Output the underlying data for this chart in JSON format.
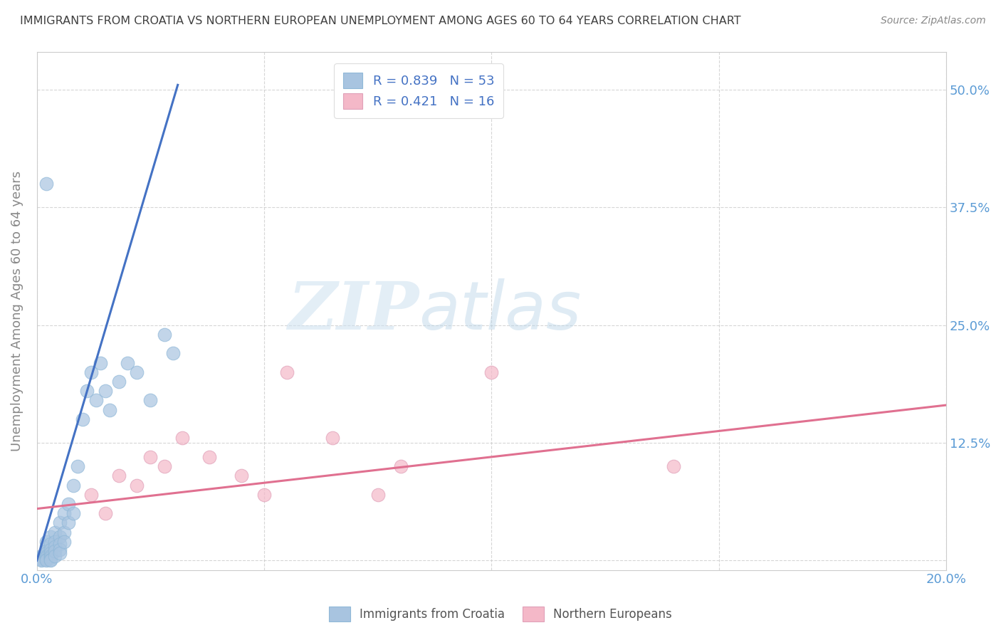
{
  "title": "IMMIGRANTS FROM CROATIA VS NORTHERN EUROPEAN UNEMPLOYMENT AMONG AGES 60 TO 64 YEARS CORRELATION CHART",
  "source": "Source: ZipAtlas.com",
  "ylabel": "Unemployment Among Ages 60 to 64 years",
  "xlim": [
    0.0,
    0.2
  ],
  "ylim": [
    -0.01,
    0.54
  ],
  "xticks": [
    0.0,
    0.05,
    0.1,
    0.15,
    0.2
  ],
  "xtick_labels": [
    "0.0%",
    "",
    "",
    "",
    "20.0%"
  ],
  "yticks": [
    0.0,
    0.125,
    0.25,
    0.375,
    0.5
  ],
  "ytick_labels_right": [
    "",
    "12.5%",
    "25.0%",
    "37.5%",
    "50.0%"
  ],
  "legend1_label": "R = 0.839   N = 53",
  "legend2_label": "R = 0.421   N = 16",
  "blue_scatter_color": "#a8c4e0",
  "pink_scatter_color": "#f4b8c8",
  "scatter_blue": [
    [
      0.001,
      0.005
    ],
    [
      0.001,
      0.003
    ],
    [
      0.001,
      0.002
    ],
    [
      0.001,
      0.001
    ],
    [
      0.001,
      0.0
    ],
    [
      0.002,
      0.02
    ],
    [
      0.002,
      0.015
    ],
    [
      0.002,
      0.01
    ],
    [
      0.002,
      0.008
    ],
    [
      0.002,
      0.005
    ],
    [
      0.002,
      0.003
    ],
    [
      0.002,
      0.001
    ],
    [
      0.002,
      0.0
    ],
    [
      0.003,
      0.025
    ],
    [
      0.003,
      0.018
    ],
    [
      0.003,
      0.012
    ],
    [
      0.003,
      0.008
    ],
    [
      0.003,
      0.005
    ],
    [
      0.003,
      0.003
    ],
    [
      0.003,
      0.001
    ],
    [
      0.003,
      0.0
    ],
    [
      0.004,
      0.03
    ],
    [
      0.004,
      0.02
    ],
    [
      0.004,
      0.015
    ],
    [
      0.004,
      0.01
    ],
    [
      0.004,
      0.005
    ],
    [
      0.005,
      0.04
    ],
    [
      0.005,
      0.025
    ],
    [
      0.005,
      0.018
    ],
    [
      0.005,
      0.012
    ],
    [
      0.005,
      0.008
    ],
    [
      0.006,
      0.05
    ],
    [
      0.006,
      0.03
    ],
    [
      0.006,
      0.02
    ],
    [
      0.007,
      0.06
    ],
    [
      0.007,
      0.04
    ],
    [
      0.008,
      0.08
    ],
    [
      0.008,
      0.05
    ],
    [
      0.009,
      0.1
    ],
    [
      0.01,
      0.15
    ],
    [
      0.011,
      0.18
    ],
    [
      0.012,
      0.2
    ],
    [
      0.013,
      0.17
    ],
    [
      0.014,
      0.21
    ],
    [
      0.015,
      0.18
    ],
    [
      0.02,
      0.21
    ],
    [
      0.025,
      0.17
    ],
    [
      0.03,
      0.22
    ],
    [
      0.002,
      0.4
    ],
    [
      0.016,
      0.16
    ],
    [
      0.018,
      0.19
    ],
    [
      0.022,
      0.2
    ],
    [
      0.028,
      0.24
    ]
  ],
  "scatter_pink": [
    [
      0.012,
      0.07
    ],
    [
      0.015,
      0.05
    ],
    [
      0.018,
      0.09
    ],
    [
      0.022,
      0.08
    ],
    [
      0.025,
      0.11
    ],
    [
      0.028,
      0.1
    ],
    [
      0.032,
      0.13
    ],
    [
      0.038,
      0.11
    ],
    [
      0.045,
      0.09
    ],
    [
      0.055,
      0.2
    ],
    [
      0.065,
      0.13
    ],
    [
      0.08,
      0.1
    ],
    [
      0.1,
      0.2
    ],
    [
      0.14,
      0.1
    ],
    [
      0.05,
      0.07
    ],
    [
      0.075,
      0.07
    ]
  ],
  "blue_line_x": [
    0.0,
    0.031
  ],
  "blue_line_y": [
    0.0,
    0.505
  ],
  "pink_line_x": [
    0.0,
    0.2
  ],
  "pink_line_y": [
    0.055,
    0.165
  ],
  "blue_line_color": "#4472c4",
  "pink_line_color": "#e07090",
  "watermark_zip": "ZIP",
  "watermark_atlas": "atlas",
  "background_color": "#ffffff",
  "grid_color": "#cccccc",
  "title_color": "#404040",
  "source_color": "#888888",
  "axis_label_color": "#888888",
  "tick_color": "#5b9bd5",
  "legend_text_color": "#4472c4"
}
